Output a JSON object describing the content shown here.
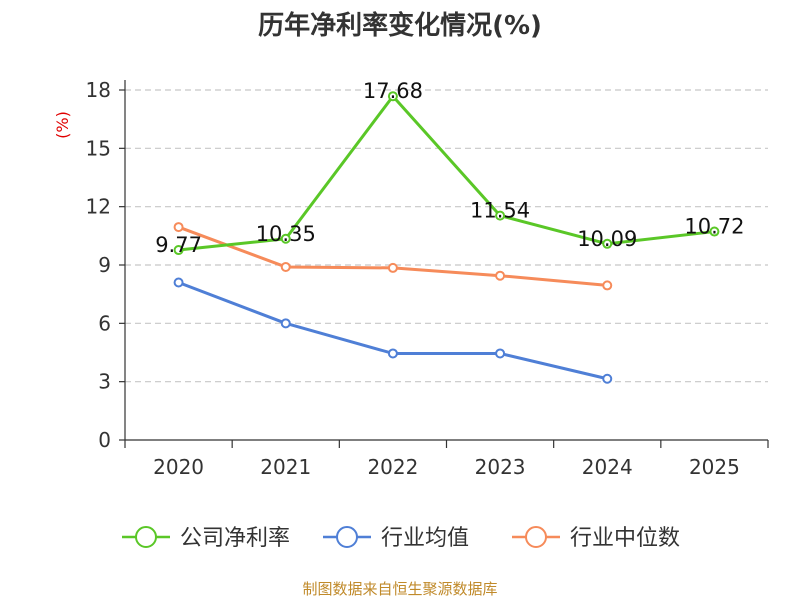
{
  "chart_data": {
    "type": "line",
    "title": "历年净利率变化情况(%)",
    "ylabel": "(%)",
    "xlabel": "",
    "categories": [
      "2020",
      "2021",
      "2022",
      "2023",
      "2024",
      "2025"
    ],
    "yticks": [
      "0",
      "3",
      "6",
      "9",
      "12",
      "15",
      "18"
    ],
    "ylim": [
      0,
      18
    ],
    "grid": true,
    "legend_position": "bottom",
    "series": [
      {
        "name": "公司净利率",
        "color": "#5ac727",
        "values": [
          9.77,
          10.35,
          17.68,
          11.54,
          10.09,
          10.72
        ],
        "labels": [
          "9.77",
          "10.35",
          "17.68",
          "11.54",
          "10.09",
          "10.72"
        ]
      },
      {
        "name": "行业均值",
        "color": "#4f7fd6",
        "values": [
          8.1,
          6.0,
          4.45,
          4.45,
          3.15,
          null
        ]
      },
      {
        "name": "行业中位数",
        "color": "#f68b5a",
        "values": [
          10.95,
          8.9,
          8.85,
          8.45,
          7.95,
          null
        ]
      }
    ]
  },
  "source_text": "制图数据来自恒生聚源数据库"
}
